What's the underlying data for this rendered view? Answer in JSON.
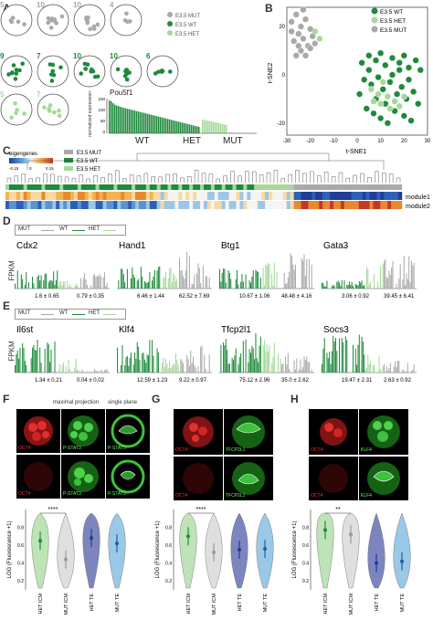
{
  "panels": {
    "A": "A",
    "B": "B",
    "C": "C",
    "D": "D",
    "E": "E",
    "F": "F",
    "G": "G",
    "H": "H"
  },
  "colors": {
    "wt": "#1e8a3c",
    "het": "#a6d89a",
    "mut": "#a9a9a9",
    "cold": "#1f3d99",
    "warm": "#c0392b"
  },
  "panelA": {
    "embryos": [
      {
        "n": "5",
        "group": "mut"
      },
      {
        "n": "10",
        "group": "mut"
      },
      {
        "n": "10",
        "group": "mut"
      },
      {
        "n": "4",
        "group": "mut"
      },
      {
        "n": "9",
        "group": "wt"
      },
      {
        "n": "7",
        "group": "wt"
      },
      {
        "n": "10",
        "group": "wt"
      },
      {
        "n": "10",
        "group": "wt"
      },
      {
        "n": "6",
        "group": "wt"
      },
      {
        "n": "5",
        "group": "het"
      },
      {
        "n": "7",
        "group": "het"
      }
    ],
    "legend": [
      "E3.5 MUT",
      "E3.5 WT",
      "E3.5 HET"
    ],
    "gene": "Pou5f1",
    "ylabel": "normalized expression",
    "yticks": [
      "0",
      "50",
      "100",
      "150"
    ],
    "groups": [
      "WT",
      "HET",
      "MUT"
    ]
  },
  "panelB": {
    "xlabel": "t-SNE1",
    "ylabel": "t-SNE2",
    "xticks": [
      "-30",
      "-20",
      "-10",
      "0",
      "10",
      "20",
      "30"
    ],
    "yticks": [
      "20",
      "0",
      "-20"
    ],
    "legend": [
      "E3.5 WT",
      "E3.5 HET",
      "E3.5 MUT"
    ]
  },
  "panelC": {
    "legend_title": "eigengenes",
    "scale": [
      "-0.15",
      "0",
      "0.15"
    ],
    "legend": [
      "E3.5 MUT",
      "E3.5 WT",
      "E3.5 HET"
    ],
    "rows": [
      "module1",
      "module2"
    ]
  },
  "panelD": {
    "legend": [
      "MUT",
      "WT",
      "HET"
    ],
    "ylabel": "FPKM",
    "genes": [
      {
        "name": "Cdx2",
        "stats": [
          "1.6 ± 0.65",
          "0.79 ± 0.35"
        ]
      },
      {
        "name": "Hand1",
        "stats": [
          "6.46 ± 1.44",
          "62.52 ± 7.69"
        ]
      },
      {
        "name": "Btg1",
        "stats": [
          "10.67 ± 1.06",
          "48.48 ± 4.16"
        ]
      },
      {
        "name": "Gata3",
        "stats": [
          "3.06 ± 0.92",
          "39.45 ± 6.41"
        ]
      }
    ]
  },
  "panelE": {
    "legend": [
      "MUT",
      "WT",
      "HET"
    ],
    "ylabel": "FPKM",
    "genes": [
      {
        "name": "Il6st",
        "stats": [
          "1.34 ± 0.21",
          "0.04 ± 0.02"
        ]
      },
      {
        "name": "Klf4",
        "stats": [
          "12.59 ± 1.23",
          "9.22 ± 0.97"
        ]
      },
      {
        "name": "Tfcp2l1",
        "stats": [
          "75.12 ± 2.96",
          "35.0 ± 2.62"
        ]
      },
      {
        "name": "Socs3",
        "stats": [
          "19.47 ± 2.31",
          "2.63 ± 0.92"
        ]
      }
    ]
  },
  "panelF": {
    "headers": [
      "maximal projection",
      "single plane"
    ],
    "labels": [
      "OCT4⁺",
      "P-STAT3",
      "P-STAT3",
      "OCT4⁻",
      "P-STAT3",
      "P-STAT3"
    ],
    "ylabel": "LOG (Fluorescence +1)",
    "categories": [
      "HET ICM",
      "MUT ICM",
      "HET TE",
      "MUT TE"
    ],
    "signif": "****",
    "yticks": [
      "0.8",
      "0.6",
      "0.4",
      "0.2"
    ]
  },
  "panelG": {
    "labels": [
      "OCT4⁺",
      "TFCP2L1",
      "OCT4⁻",
      "TFCP2L1"
    ],
    "ylabel": "LOG (Fluorescence +1)",
    "categories": [
      "HET ICM",
      "MUT ICM",
      "HET TE",
      "MUT TE"
    ],
    "signif": "****",
    "yticks": [
      "0.8",
      "0.6",
      "0.4",
      "0.2"
    ]
  },
  "panelH": {
    "labels": [
      "OCT4⁺",
      "KLF4",
      "OCT4⁻",
      "KLF4"
    ],
    "ylabel": "LOG (Fluorescence +1)",
    "categories": [
      "HET ICM",
      "MUT ICM",
      "HET TE",
      "MUT TE"
    ],
    "signif": "**",
    "yticks": [
      "0.8",
      "0.6",
      "0.4",
      "0.2"
    ]
  },
  "chart_data": [
    {
      "type": "bar",
      "id": "A-pou5f1",
      "title": "Pou5f1",
      "ylabel": "normalized expression",
      "ylim": [
        0,
        150
      ],
      "series": [
        {
          "name": "WT",
          "values": [
            142,
            138,
            130,
            124,
            120,
            118,
            115,
            112,
            110,
            108,
            106,
            104,
            102,
            100,
            98,
            96,
            94,
            92,
            90,
            88,
            86,
            84,
            82,
            80,
            78,
            76,
            74,
            72,
            70,
            68,
            66,
            64,
            62,
            60,
            58,
            56,
            54,
            52,
            50,
            48,
            46,
            44,
            42,
            40,
            38,
            36,
            34,
            32,
            30,
            28
          ]
        },
        {
          "name": "HET",
          "values": [
            60,
            58,
            56,
            55,
            53,
            52,
            50,
            48,
            46,
            44,
            42,
            40,
            38,
            36
          ]
        },
        {
          "name": "MUT",
          "values": [
            3,
            2,
            2,
            1,
            1,
            1,
            1,
            1,
            0,
            0,
            0,
            0,
            0,
            0
          ]
        }
      ]
    },
    {
      "type": "scatter",
      "id": "B-tsne",
      "xlabel": "t-SNE1",
      "ylabel": "t-SNE2",
      "xlim": [
        -30,
        30
      ],
      "ylim": [
        -25,
        28
      ],
      "series": [
        {
          "name": "E3.5 WT",
          "points": [
            [
              2,
              5
            ],
            [
              5,
              8
            ],
            [
              8,
              6
            ],
            [
              10,
              9
            ],
            [
              12,
              4
            ],
            [
              15,
              7
            ],
            [
              18,
              5
            ],
            [
              20,
              8
            ],
            [
              22,
              3
            ],
            [
              25,
              6
            ],
            [
              3,
              -2
            ],
            [
              6,
              -4
            ],
            [
              9,
              -1
            ],
            [
              11,
              -6
            ],
            [
              14,
              -3
            ],
            [
              17,
              -8
            ],
            [
              19,
              -5
            ],
            [
              21,
              -10
            ],
            [
              24,
              -7
            ],
            [
              26,
              -12
            ],
            [
              4,
              -14
            ],
            [
              7,
              -16
            ],
            [
              10,
              -18
            ],
            [
              13,
              -20
            ],
            [
              16,
              -15
            ],
            [
              20,
              -17
            ],
            [
              23,
              -19
            ],
            [
              1,
              -8
            ],
            [
              12,
              -12
            ],
            [
              8,
              -10
            ],
            [
              15,
              0
            ],
            [
              18,
              2
            ],
            [
              22,
              -2
            ],
            [
              27,
              2
            ],
            [
              5,
              2
            ]
          ]
        },
        {
          "name": "E3.5 HET",
          "points": [
            [
              6,
              -6
            ],
            [
              9,
              -8
            ],
            [
              11,
              -3
            ],
            [
              13,
              -9
            ],
            [
              16,
              -11
            ],
            [
              18,
              -13
            ],
            [
              14,
              -14
            ],
            [
              10,
              -12
            ],
            [
              20,
              -9
            ],
            [
              7,
              -11
            ],
            [
              -18,
              18
            ],
            [
              -16,
              15
            ]
          ]
        },
        {
          "name": "E3.5 MUT",
          "points": [
            [
              -28,
              22
            ],
            [
              -26,
              25
            ],
            [
              -24,
              20
            ],
            [
              -22,
              23
            ],
            [
              -20,
              19
            ],
            [
              -25,
              17
            ],
            [
              -27,
              14
            ],
            [
              -23,
              15
            ],
            [
              -21,
              12
            ],
            [
              -19,
              16
            ],
            [
              -24,
              10
            ],
            [
              -26,
              8
            ],
            [
              -22,
              8
            ],
            [
              -20,
              11
            ],
            [
              -18,
              13
            ],
            [
              -28,
              18
            ],
            [
              -23,
              27
            ],
            [
              -25,
              12
            ]
          ]
        }
      ]
    },
    {
      "type": "violin",
      "id": "F",
      "ylabel": "LOG (Fluorescence +1)",
      "categories": [
        "HET ICM",
        "MUT ICM",
        "HET TE",
        "MUT TE"
      ],
      "medians": [
        0.65,
        0.44,
        0.68,
        0.62
      ],
      "ylim": [
        0.1,
        1.0
      ]
    },
    {
      "type": "violin",
      "id": "G",
      "ylabel": "LOG (Fluorescence +1)",
      "categories": [
        "HET ICM",
        "MUT ICM",
        "HET TE",
        "MUT TE"
      ],
      "medians": [
        0.7,
        0.52,
        0.55,
        0.56
      ],
      "ylim": [
        0.1,
        1.0
      ]
    },
    {
      "type": "violin",
      "id": "H",
      "ylabel": "LOG (Fluorescence +1)",
      "categories": [
        "HET ICM",
        "MUT ICM",
        "HET TE",
        "MUT TE"
      ],
      "medians": [
        0.77,
        0.72,
        0.4,
        0.42
      ],
      "ylim": [
        0.1,
        1.0
      ]
    }
  ]
}
